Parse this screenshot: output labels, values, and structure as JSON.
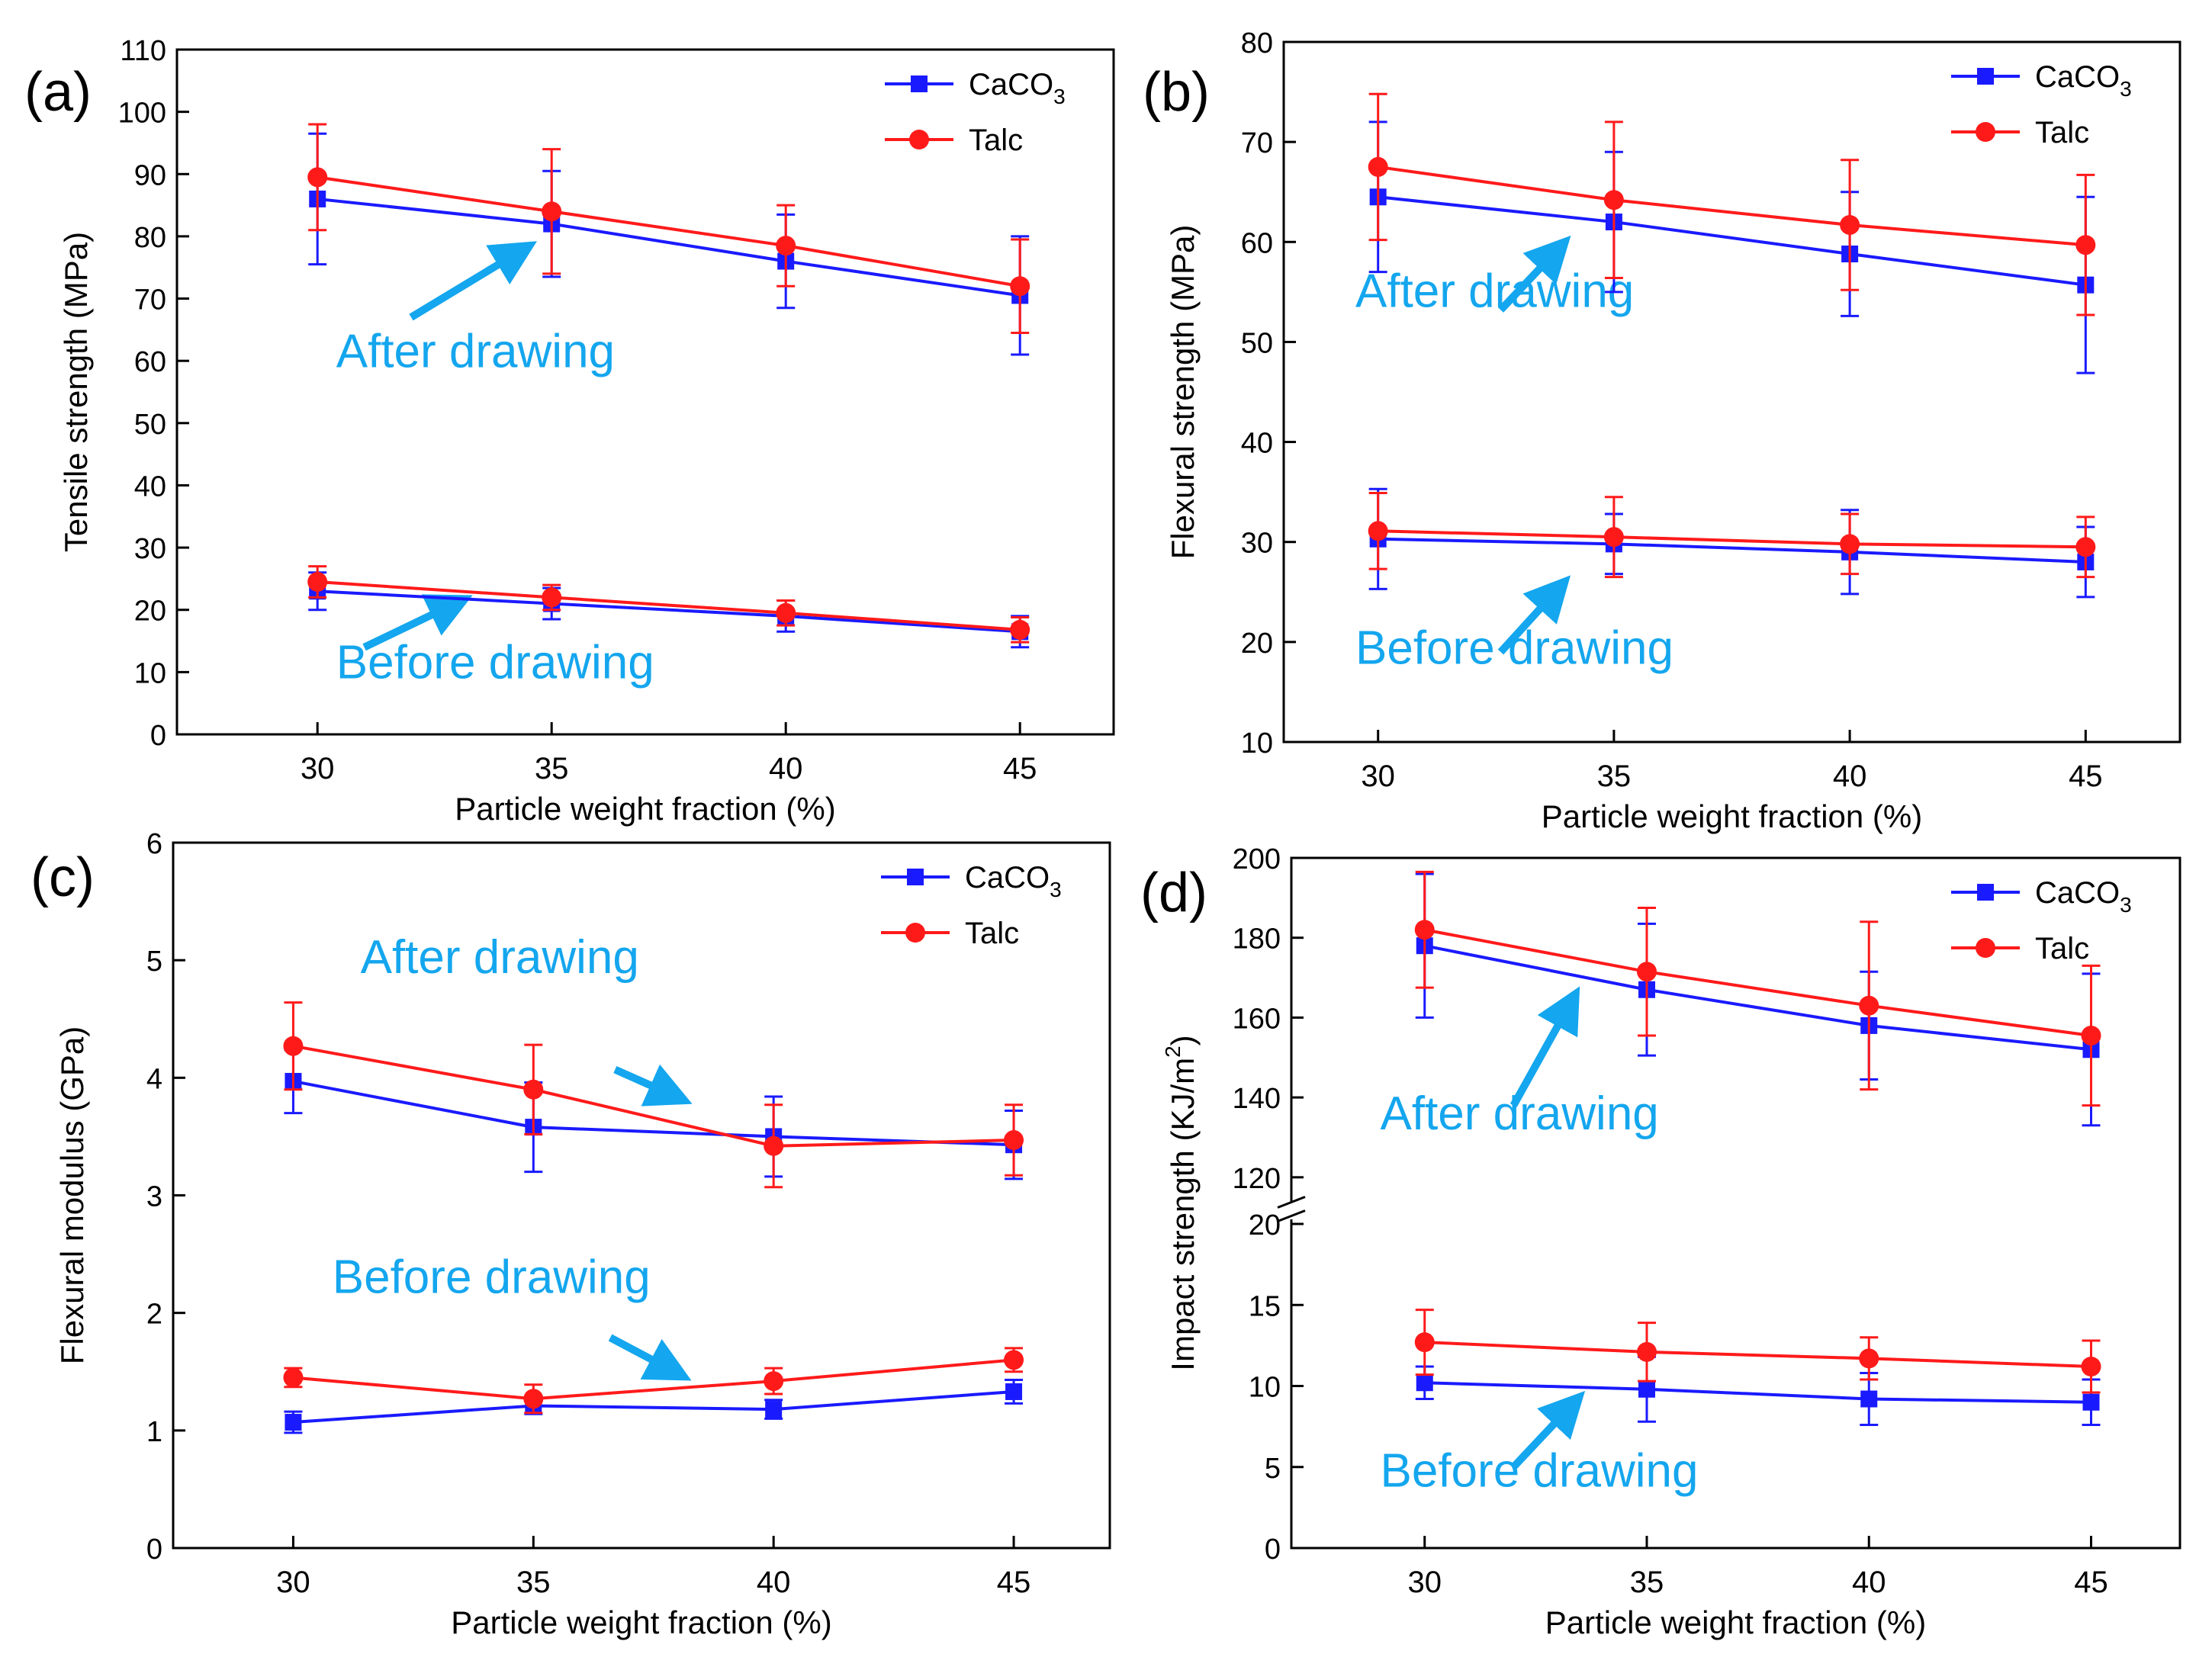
{
  "figure": {
    "x_label": "Particle weight fraction (%)",
    "series_colors": {
      "CaCO3": "#1a1aff",
      "Talc": "#ff1a1a"
    },
    "annotation_color": "#14a6ee",
    "legend": {
      "caco3_main": "CaCO",
      "caco3_sub": "3",
      "talc": "Talc"
    }
  },
  "chart_data": [
    {
      "panel": "(a)",
      "type": "line",
      "ylabel": "Tensile strength (MPa)",
      "xlabel": "Particle weight fraction (%)",
      "x": [
        30,
        35,
        40,
        45
      ],
      "xlim": [
        27,
        47
      ],
      "ylim": [
        0,
        110
      ],
      "yticks": [
        0,
        10,
        20,
        30,
        40,
        50,
        60,
        70,
        80,
        90,
        100,
        110
      ],
      "series": [
        {
          "name": "CaCO3 after drawing",
          "material": "CaCO3",
          "values": [
            86,
            82,
            76,
            70.5
          ],
          "errors": [
            10.5,
            8.5,
            7.5,
            9.5
          ]
        },
        {
          "name": "Talc after drawing",
          "material": "Talc",
          "values": [
            89.5,
            84,
            78.5,
            72
          ],
          "errors": [
            8.5,
            10,
            6.5,
            7.5
          ]
        },
        {
          "name": "CaCO3 before drawing",
          "material": "CaCO3",
          "values": [
            23,
            21,
            19,
            16.5
          ],
          "errors": [
            3,
            2.5,
            2.5,
            2.5
          ]
        },
        {
          "name": "Talc before drawing",
          "material": "Talc",
          "values": [
            24.5,
            22,
            19.5,
            16.8
          ],
          "errors": [
            2.5,
            2,
            2,
            2
          ]
        }
      ],
      "annotations": [
        {
          "text": "After drawing",
          "value": 59,
          "frac": 0.17,
          "arrow_from": [
            32,
            67
          ],
          "arrow_to": [
            34.2,
            77
          ]
        },
        {
          "text": "Before drawing",
          "value": 9,
          "frac": 0.17,
          "arrow_from": [
            31,
            14
          ],
          "arrow_to": [
            32.8,
            20.5
          ]
        }
      ],
      "legend_position": "top-right"
    },
    {
      "panel": "(b)",
      "type": "line",
      "ylabel": "Flexural strength (MPa)",
      "xlabel": "Particle weight fraction (%)",
      "x": [
        30,
        35,
        40,
        45
      ],
      "xlim": [
        28,
        47
      ],
      "ylim": [
        10,
        80
      ],
      "yticks": [
        10,
        20,
        30,
        40,
        50,
        60,
        70,
        80
      ],
      "series": [
        {
          "name": "CaCO3 after drawing",
          "material": "CaCO3",
          "values": [
            64.5,
            62,
            58.8,
            55.7
          ],
          "errors": [
            7.5,
            7,
            6.2,
            8.8
          ]
        },
        {
          "name": "Talc after drawing",
          "material": "Talc",
          "values": [
            67.5,
            64.2,
            61.7,
            59.7
          ],
          "errors": [
            7.3,
            7.8,
            6.5,
            7
          ]
        },
        {
          "name": "CaCO3 before drawing",
          "material": "CaCO3",
          "values": [
            30.3,
            29.8,
            29,
            28
          ],
          "errors": [
            5,
            3,
            4.2,
            3.5
          ]
        },
        {
          "name": "Talc before drawing",
          "material": "Talc",
          "values": [
            31.1,
            30.5,
            29.8,
            29.5
          ],
          "errors": [
            3.8,
            4,
            3,
            3
          ]
        }
      ],
      "annotations": [
        {
          "text": "After drawing",
          "value": 53.5,
          "frac": 0.08,
          "arrow_from": [
            32.6,
            53.2
          ],
          "arrow_to": [
            33.7,
            58.7
          ]
        },
        {
          "text": "Before drawing",
          "value": 17.8,
          "frac": 0.08,
          "arrow_from": [
            32.6,
            19
          ],
          "arrow_to": [
            33.7,
            24.7
          ]
        }
      ],
      "legend_position": "top-right"
    },
    {
      "panel": "(c)",
      "type": "line",
      "ylabel": "Flexural modulus (GPa)",
      "xlabel": "Particle weight fraction (%)",
      "x": [
        30,
        35,
        40,
        45
      ],
      "xlim": [
        27.5,
        47
      ],
      "ylim": [
        0,
        6
      ],
      "yticks": [
        0,
        1,
        2,
        3,
        4,
        5,
        6
      ],
      "series": [
        {
          "name": "CaCO3 after drawing",
          "material": "CaCO3",
          "values": [
            3.97,
            3.58,
            3.5,
            3.43
          ],
          "errors": [
            0.27,
            0.38,
            0.34,
            0.29
          ]
        },
        {
          "name": "Talc after drawing",
          "material": "Talc",
          "values": [
            4.27,
            3.9,
            3.42,
            3.47
          ],
          "errors": [
            0.37,
            0.38,
            0.35,
            0.3
          ]
        },
        {
          "name": "CaCO3 before drawing",
          "material": "CaCO3",
          "values": [
            1.07,
            1.21,
            1.18,
            1.33
          ],
          "errors": [
            0.09,
            0.07,
            0.08,
            0.1
          ]
        },
        {
          "name": "Talc before drawing",
          "material": "Talc",
          "values": [
            1.45,
            1.27,
            1.42,
            1.6
          ],
          "errors": [
            0.08,
            0.12,
            0.11,
            0.1
          ]
        }
      ],
      "annotations": [
        {
          "text": "After drawing",
          "value": 4.89,
          "frac": 0.2,
          "arrow_from": [
            36.7,
            4.07
          ],
          "arrow_to": [
            37.8,
            3.87
          ]
        },
        {
          "text": "Before drawing",
          "value": 2.17,
          "frac": 0.17,
          "arrow_from": [
            36.6,
            1.79
          ],
          "arrow_to": [
            37.8,
            1.53
          ]
        }
      ],
      "legend_position": "top-right"
    },
    {
      "panel": "(d)",
      "type": "line",
      "ylabel": "Impact strength (KJ/m",
      "ylabel_sup": "2",
      "ylabel_end": ")",
      "xlabel": "Particle weight fraction (%)",
      "x": [
        30,
        35,
        40,
        45
      ],
      "xlim": [
        27,
        47
      ],
      "axis_break": {
        "lower_range": [
          0,
          20
        ],
        "upper_range": [
          115,
          200
        ]
      },
      "yticks_lower": [
        0,
        5,
        10,
        15,
        20
      ],
      "yticks_upper": [
        120,
        140,
        160,
        180,
        200
      ],
      "series": [
        {
          "name": "CaCO3 after drawing",
          "material": "CaCO3",
          "values": [
            178,
            167,
            158,
            152
          ],
          "errors": [
            18,
            16.5,
            13.5,
            19
          ]
        },
        {
          "name": "Talc after drawing",
          "material": "Talc",
          "values": [
            182,
            171.5,
            163,
            155.5
          ],
          "errors": [
            14.5,
            16,
            21,
            17.5
          ]
        },
        {
          "name": "CaCO3 before drawing",
          "material": "CaCO3",
          "values": [
            10.2,
            9.8,
            9.2,
            9.0
          ],
          "errors": [
            1.0,
            2.0,
            1.6,
            1.4
          ]
        },
        {
          "name": "Talc before drawing",
          "material": "Talc",
          "values": [
            12.7,
            12.1,
            11.7,
            11.2
          ],
          "errors": [
            2.0,
            1.8,
            1.3,
            1.6
          ]
        }
      ],
      "annotations": [
        {
          "text": "After drawing",
          "value": 132,
          "frac": 0.1,
          "arrow_from": [
            32,
            138
          ],
          "arrow_to": [
            33.2,
            162
          ]
        },
        {
          "text": "Before drawing",
          "value": 3.8,
          "frac": 0.1,
          "arrow_from": [
            32,
            5
          ],
          "arrow_to": [
            33.2,
            8.5
          ]
        }
      ],
      "legend_position": "top-right"
    }
  ]
}
